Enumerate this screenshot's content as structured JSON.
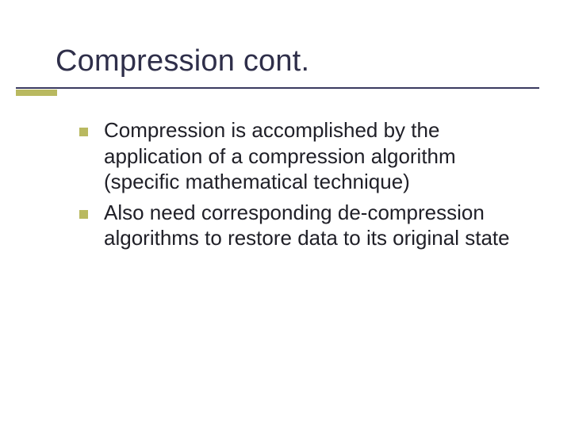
{
  "slide": {
    "title": "Compression cont.",
    "bullets": [
      "Compression is accomplished by the application of a compression algorithm (specific mathematical technique)",
      "Also need corresponding de-compression algorithms to restore data to its original state"
    ]
  },
  "style": {
    "background_color": "#ffffff",
    "title_color": "#2f2f4a",
    "title_fontsize": 38,
    "body_color": "#202028",
    "body_fontsize": 26,
    "bullet_marker_color": "#b9b960",
    "underline_long_color": "#3a3a60",
    "underline_short_color": "#b9b960",
    "font_family": "Verdana"
  }
}
